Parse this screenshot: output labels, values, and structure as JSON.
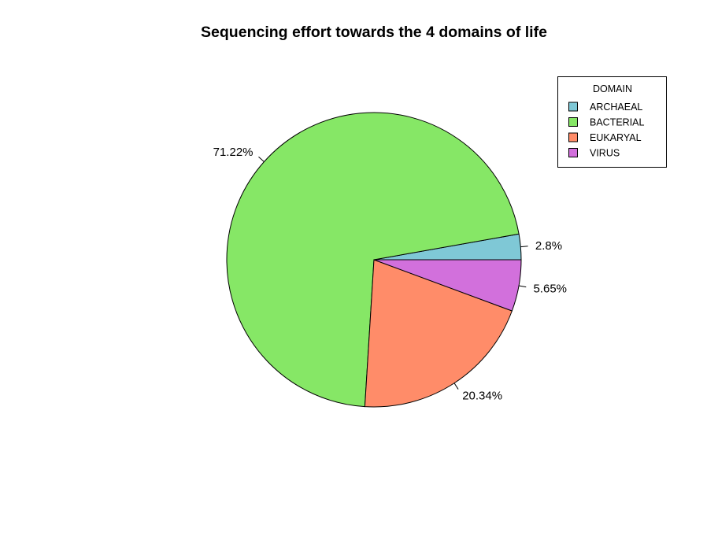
{
  "chart_data": {
    "type": "pie",
    "title": "Sequencing effort towards the 4 domains of life",
    "legend": {
      "title": "DOMAIN",
      "position": "top-right"
    },
    "slices": [
      {
        "name": "ARCHAEAL",
        "value": 2.8,
        "label": "2.8%",
        "color": "#7FC8D6"
      },
      {
        "name": "BACTERIAL",
        "value": 71.22,
        "label": "71.22%",
        "color": "#86E766"
      },
      {
        "name": "EUKARYAL",
        "value": 20.34,
        "label": "20.34%",
        "color": "#FF8C69"
      },
      {
        "name": "VIRUS",
        "value": 5.65,
        "label": "5.65%",
        "color": "#D270DC"
      }
    ],
    "draw_order": [
      "ARCHAEAL",
      "BACTERIAL",
      "EUKARYAL",
      "VIRUS"
    ],
    "direction": "counterclockwise",
    "start_angle_deg": 0
  }
}
